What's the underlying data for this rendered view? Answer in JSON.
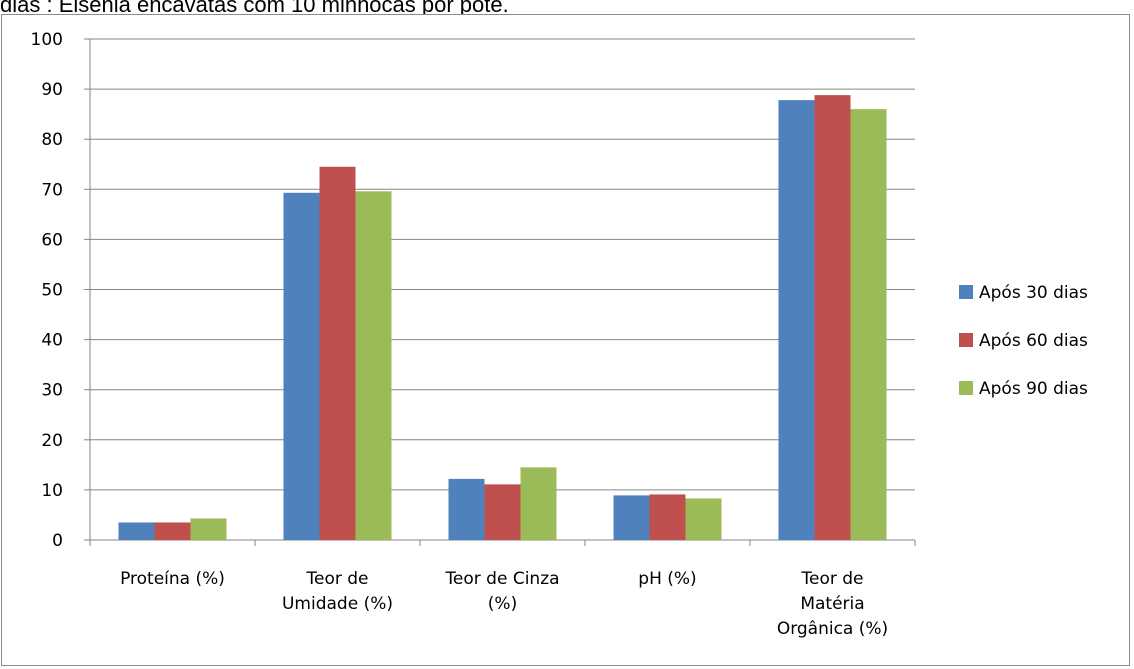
{
  "caption": "dias : Eisenia encavatas com 10 minhocas por pote.",
  "chart_data": {
    "type": "bar",
    "categories": [
      [
        "Proteína (%)"
      ],
      [
        "Teor de",
        "Umidade (%)"
      ],
      [
        "Teor de Cinza",
        "(%)"
      ],
      [
        "pH (%)"
      ],
      [
        "Teor de",
        "Matéria",
        "Orgânica (%)"
      ]
    ],
    "series": [
      {
        "name": "Após 30 dias",
        "color": "#4f81bd",
        "values": [
          3.5,
          69.3,
          12.2,
          8.9,
          87.8
        ]
      },
      {
        "name": "Após 60 dias",
        "color": "#c0504d",
        "values": [
          3.5,
          74.5,
          11.1,
          9.1,
          88.8
        ]
      },
      {
        "name": "Após 90 dias",
        "color": "#9bbb59",
        "values": [
          4.3,
          69.6,
          14.5,
          8.3,
          86.0
        ]
      }
    ],
    "ylim": [
      0,
      100
    ],
    "yticks": [
      0,
      10,
      20,
      30,
      40,
      50,
      60,
      70,
      80,
      90,
      100
    ],
    "grid": true,
    "legend_position": "right",
    "title": "",
    "xlabel": "",
    "ylabel": ""
  }
}
